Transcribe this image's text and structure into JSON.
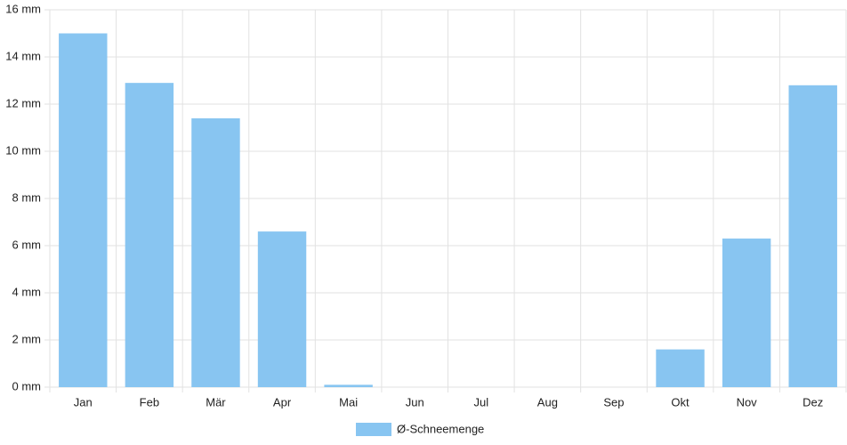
{
  "chart_data": {
    "type": "bar",
    "categories": [
      "Jan",
      "Feb",
      "Mär",
      "Apr",
      "Mai",
      "Jun",
      "Jul",
      "Aug",
      "Sep",
      "Okt",
      "Nov",
      "Dez"
    ],
    "series": [
      {
        "name": "Ø-Schneemenge",
        "color": "#88c5f1",
        "values": [
          15.0,
          12.9,
          11.4,
          6.6,
          0.1,
          0,
          0,
          0,
          0,
          1.6,
          6.3,
          12.8
        ]
      }
    ],
    "ylim": [
      0,
      16
    ],
    "yticks": [
      {
        "value": 0,
        "label": "0 mm"
      },
      {
        "value": 2,
        "label": "2 mm"
      },
      {
        "value": 4,
        "label": "4 mm"
      },
      {
        "value": 6,
        "label": "6 mm"
      },
      {
        "value": 8,
        "label": "8 mm"
      },
      {
        "value": 10,
        "label": "10 mm"
      },
      {
        "value": 12,
        "label": "12 mm"
      },
      {
        "value": 14,
        "label": "14 mm"
      },
      {
        "value": 16,
        "label": "16 mm"
      }
    ],
    "grid": true
  }
}
